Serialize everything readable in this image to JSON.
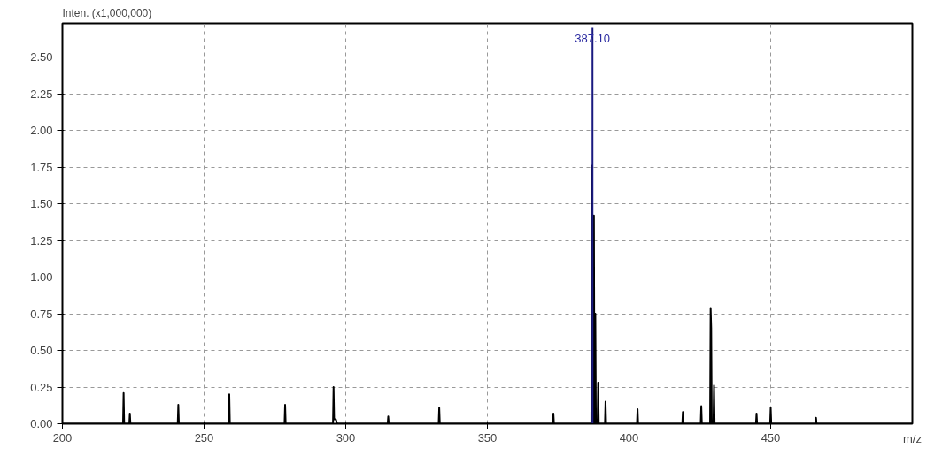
{
  "chart_data": {
    "type": "line",
    "xlabel": "m/z",
    "ylabel": "Inten. (x1,000,000)",
    "xlim": [
      200,
      500
    ],
    "ylim": [
      0,
      2.73
    ],
    "xticks": [
      200,
      250,
      300,
      350,
      400,
      450
    ],
    "yticks": [
      {
        "value": 0,
        "label": "0.00"
      },
      {
        "value": 0.25,
        "label": "0.25"
      },
      {
        "value": 0.5,
        "label": "0.50"
      },
      {
        "value": 0.75,
        "label": "0.75"
      },
      {
        "value": 1,
        "label": "1.00"
      },
      {
        "value": 1.25,
        "label": "1.25"
      },
      {
        "value": 1.5,
        "label": "1.50"
      },
      {
        "value": 1.75,
        "label": "1.75"
      },
      {
        "value": 2,
        "label": "2.00"
      },
      {
        "value": 2.25,
        "label": "2.25"
      },
      {
        "value": 2.5,
        "label": "2.50"
      }
    ],
    "grid": true,
    "line_style": "solid",
    "marker": "none",
    "series": [
      {
        "color": "#000000",
        "x": [
          200,
          221.4,
          221.6,
          221.8,
          223.6,
          223.8,
          224.0,
          240.7,
          240.9,
          241.1,
          258.7,
          258.9,
          259.1,
          278.4,
          278.6,
          278.8,
          295.5,
          295.7,
          295.9,
          296.5,
          297.0,
          314.8,
          315.0,
          315.2,
          332.8,
          333.0,
          333.2,
          373.1,
          373.3,
          373.5,
          386.7,
          386.9,
          387.0,
          387.4,
          387.6,
          387.8,
          387.9,
          388.1,
          388.3,
          388.9,
          389.1,
          389.3,
          391.5,
          391.7,
          391.9,
          402.8,
          403.0,
          403.2,
          418.8,
          419.0,
          419.2,
          425.3,
          425.5,
          425.7,
          428.6,
          428.8,
          429.0,
          429.2,
          429.8,
          430.0,
          430.2,
          444.8,
          445.0,
          445.2,
          449.8,
          450.0,
          450.2,
          465.8,
          466.0,
          466.2,
          500
        ],
        "values": [
          0,
          0,
          0.21,
          0,
          0,
          0.07,
          0,
          0,
          0.13,
          0,
          0,
          0.2,
          0,
          0,
          0.13,
          0,
          0,
          0.25,
          0.03,
          0.03,
          0,
          0,
          0.05,
          0,
          0,
          0.11,
          0,
          0,
          0.07,
          0,
          0,
          1.76,
          0,
          0,
          1.42,
          0,
          0,
          0.75,
          0,
          0,
          0.28,
          0,
          0,
          0.15,
          0,
          0,
          0.1,
          0,
          0,
          0.08,
          0,
          0,
          0.12,
          0,
          0,
          0.79,
          0.65,
          0,
          0,
          0.26,
          0,
          0,
          0.07,
          0,
          0,
          0.11,
          0,
          0,
          0.04,
          0,
          0
        ]
      },
      {
        "color": "#1a1a80",
        "x": [
          387.1,
          387.1
        ],
        "values": [
          0,
          2.7
        ]
      }
    ],
    "annotations": [
      {
        "text": "387.10",
        "x": 387.1,
        "y": 2.7
      }
    ]
  }
}
